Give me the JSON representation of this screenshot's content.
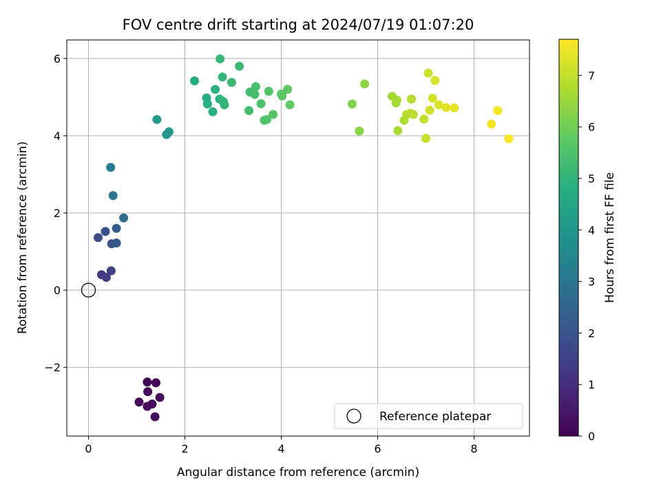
{
  "chart_data": {
    "type": "scatter",
    "title": "FOV centre drift starting at 2024/07/19 01:07:20",
    "xlabel": "Angular distance from reference (arcmin)",
    "ylabel": "Rotation from reference (arcmin)",
    "xlim": [
      -0.45,
      9.15
    ],
    "ylim": [
      -3.78,
      6.48
    ],
    "xticks": [
      0,
      2,
      4,
      6,
      8
    ],
    "yticks": [
      -2,
      0,
      2,
      4,
      6
    ],
    "xtick_labels": [
      "0",
      "2",
      "4",
      "6",
      "8"
    ],
    "ytick_labels": [
      "−2",
      "0",
      "2",
      "4",
      "6"
    ],
    "grid": true,
    "colormap": "viridis",
    "colorbar": {
      "label": "Hours from first FF file",
      "range": [
        0,
        7.7
      ],
      "ticks": [
        0,
        1,
        2,
        3,
        4,
        5,
        6,
        7
      ],
      "tick_labels": [
        "0",
        "1",
        "2",
        "3",
        "4",
        "5",
        "6",
        "7"
      ]
    },
    "legend": {
      "position": "lower right",
      "entries": [
        "Reference platepar"
      ]
    },
    "reference_point": {
      "x": 0,
      "y": 0,
      "label": "Reference platepar"
    },
    "points": [
      {
        "x": 1.22,
        "y": -2.38,
        "t": 0.05
      },
      {
        "x": 1.4,
        "y": -2.4,
        "t": 0.08
      },
      {
        "x": 1.23,
        "y": -2.63,
        "t": 0.1
      },
      {
        "x": 1.05,
        "y": -2.9,
        "t": 0.15
      },
      {
        "x": 1.22,
        "y": -3.01,
        "t": 0.2
      },
      {
        "x": 1.32,
        "y": -2.95,
        "t": 0.22
      },
      {
        "x": 1.48,
        "y": -2.78,
        "t": 0.25
      },
      {
        "x": 1.38,
        "y": -3.28,
        "t": 0.3
      },
      {
        "x": 0.27,
        "y": 0.4,
        "t": 1.3
      },
      {
        "x": 0.37,
        "y": 0.33,
        "t": 1.4
      },
      {
        "x": 0.47,
        "y": 0.5,
        "t": 1.55
      },
      {
        "x": 0.2,
        "y": 1.36,
        "t": 1.8
      },
      {
        "x": 0.35,
        "y": 1.52,
        "t": 1.9
      },
      {
        "x": 0.48,
        "y": 1.2,
        "t": 2.0
      },
      {
        "x": 0.58,
        "y": 1.22,
        "t": 2.1
      },
      {
        "x": 0.58,
        "y": 1.6,
        "t": 2.3
      },
      {
        "x": 0.73,
        "y": 1.87,
        "t": 2.7
      },
      {
        "x": 0.51,
        "y": 2.45,
        "t": 3.0
      },
      {
        "x": 0.46,
        "y": 3.18,
        "t": 3.2
      },
      {
        "x": 1.62,
        "y": 4.03,
        "t": 4.0
      },
      {
        "x": 1.67,
        "y": 4.1,
        "t": 4.05
      },
      {
        "x": 1.42,
        "y": 4.42,
        "t": 4.1
      },
      {
        "x": 2.2,
        "y": 5.42,
        "t": 4.7
      },
      {
        "x": 2.45,
        "y": 4.98,
        "t": 4.75
      },
      {
        "x": 2.47,
        "y": 4.82,
        "t": 4.8
      },
      {
        "x": 2.58,
        "y": 4.62,
        "t": 4.85
      },
      {
        "x": 2.63,
        "y": 5.2,
        "t": 4.9
      },
      {
        "x": 2.72,
        "y": 4.95,
        "t": 4.95
      },
      {
        "x": 2.8,
        "y": 4.88,
        "t": 5.0
      },
      {
        "x": 2.82,
        "y": 4.8,
        "t": 5.0
      },
      {
        "x": 2.78,
        "y": 5.52,
        "t": 5.05
      },
      {
        "x": 2.73,
        "y": 5.99,
        "t": 5.1
      },
      {
        "x": 2.97,
        "y": 5.38,
        "t": 5.15
      },
      {
        "x": 3.13,
        "y": 5.8,
        "t": 5.2
      },
      {
        "x": 3.33,
        "y": 4.65,
        "t": 5.3
      },
      {
        "x": 3.35,
        "y": 5.13,
        "t": 5.3
      },
      {
        "x": 3.45,
        "y": 5.07,
        "t": 5.35
      },
      {
        "x": 3.47,
        "y": 5.27,
        "t": 5.4
      },
      {
        "x": 3.58,
        "y": 4.83,
        "t": 5.45
      },
      {
        "x": 3.65,
        "y": 4.4,
        "t": 5.5
      },
      {
        "x": 3.7,
        "y": 4.42,
        "t": 5.55
      },
      {
        "x": 3.74,
        "y": 5.15,
        "t": 5.55
      },
      {
        "x": 3.83,
        "y": 4.55,
        "t": 5.6
      },
      {
        "x": 4.0,
        "y": 5.08,
        "t": 5.7
      },
      {
        "x": 4.02,
        "y": 5.03,
        "t": 5.7
      },
      {
        "x": 4.13,
        "y": 5.2,
        "t": 5.75
      },
      {
        "x": 4.18,
        "y": 4.8,
        "t": 5.8
      },
      {
        "x": 5.47,
        "y": 4.82,
        "t": 6.2
      },
      {
        "x": 5.62,
        "y": 4.12,
        "t": 6.3
      },
      {
        "x": 5.73,
        "y": 5.34,
        "t": 6.35
      },
      {
        "x": 6.3,
        "y": 5.02,
        "t": 6.6
      },
      {
        "x": 6.38,
        "y": 4.85,
        "t": 6.65
      },
      {
        "x": 6.4,
        "y": 4.92,
        "t": 6.65
      },
      {
        "x": 6.42,
        "y": 4.13,
        "t": 6.7
      },
      {
        "x": 6.55,
        "y": 4.4,
        "t": 6.75
      },
      {
        "x": 6.6,
        "y": 4.55,
        "t": 6.8
      },
      {
        "x": 6.68,
        "y": 4.58,
        "t": 6.85
      },
      {
        "x": 6.7,
        "y": 4.95,
        "t": 6.85
      },
      {
        "x": 6.74,
        "y": 4.55,
        "t": 6.9
      },
      {
        "x": 6.96,
        "y": 4.43,
        "t": 7.0
      },
      {
        "x": 7.0,
        "y": 3.93,
        "t": 7.05
      },
      {
        "x": 7.05,
        "y": 5.62,
        "t": 7.1
      },
      {
        "x": 7.08,
        "y": 4.66,
        "t": 7.15
      },
      {
        "x": 7.14,
        "y": 4.97,
        "t": 7.2
      },
      {
        "x": 7.19,
        "y": 5.43,
        "t": 7.25
      },
      {
        "x": 7.27,
        "y": 4.8,
        "t": 7.3
      },
      {
        "x": 7.42,
        "y": 4.73,
        "t": 7.35
      },
      {
        "x": 7.59,
        "y": 4.72,
        "t": 7.4
      },
      {
        "x": 8.36,
        "y": 4.3,
        "t": 7.55
      },
      {
        "x": 8.49,
        "y": 4.65,
        "t": 7.6
      },
      {
        "x": 8.72,
        "y": 3.92,
        "t": 7.7
      }
    ]
  }
}
